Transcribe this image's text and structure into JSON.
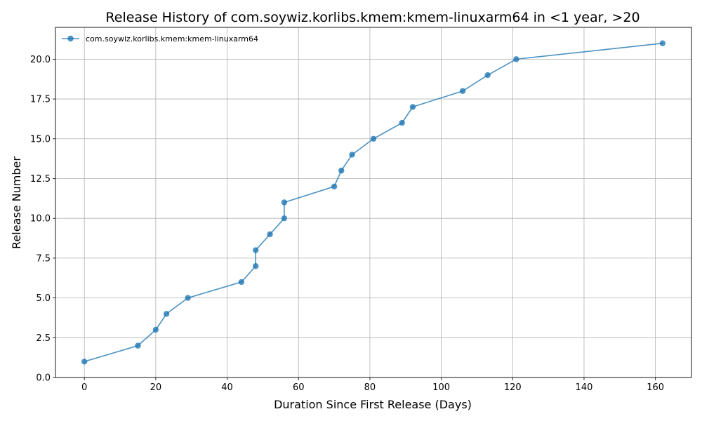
{
  "chart_data": {
    "type": "line",
    "title": "Release History of com.soywiz.korlibs.kmem:kmem-linuxarm64 in <1 year, >20",
    "xlabel": "Duration Since First Release (Days)",
    "ylabel": "Release Number",
    "xlim": [
      -8.1,
      170.1
    ],
    "ylim": [
      0,
      22
    ],
    "xticks": [
      0,
      20,
      40,
      60,
      80,
      100,
      120,
      140,
      160
    ],
    "yticks": [
      0.0,
      2.5,
      5.0,
      7.5,
      10.0,
      12.5,
      15.0,
      17.5,
      20.0
    ],
    "xtick_labels": [
      "0",
      "20",
      "40",
      "60",
      "80",
      "100",
      "120",
      "140",
      "160"
    ],
    "ytick_labels": [
      "0.0",
      "2.5",
      "5.0",
      "7.5",
      "10.0",
      "12.5",
      "15.0",
      "17.5",
      "20.0"
    ],
    "grid": true,
    "legend_position": "top-left",
    "series": [
      {
        "name": "com.soywiz.korlibs.kmem:kmem-linuxarm64",
        "color": "#1f77b4",
        "marker": "circle",
        "x": [
          0,
          15,
          20,
          23,
          29,
          44,
          48,
          48,
          52,
          56,
          56,
          70,
          72,
          75,
          81,
          89,
          92,
          106,
          113,
          121,
          162
        ],
        "y": [
          1,
          2,
          3,
          4,
          5,
          6,
          7,
          8,
          9,
          10,
          11,
          12,
          13,
          14,
          15,
          16,
          17,
          18,
          19,
          20,
          21
        ]
      }
    ]
  }
}
